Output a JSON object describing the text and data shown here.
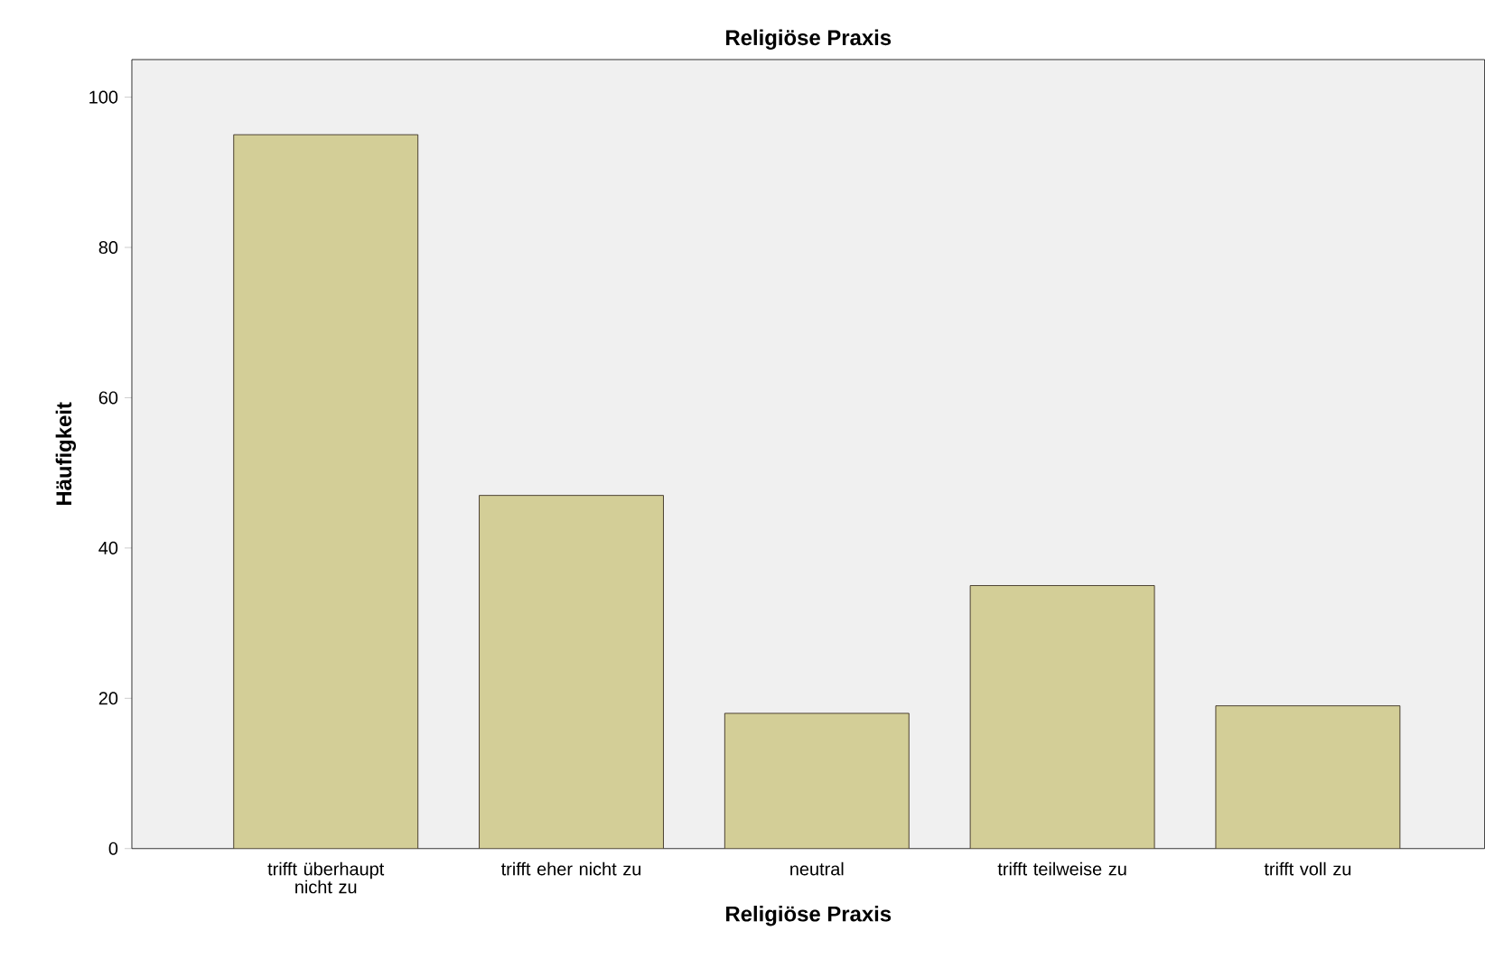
{
  "chart_data": {
    "type": "bar",
    "title": "Religiöse Praxis",
    "xlabel": "Religiöse Praxis",
    "ylabel": "Häufigkeit",
    "categories": [
      "trifft überhaupt nicht zu",
      "trifft eher nicht zu",
      "neutral",
      "trifft teilweise zu",
      "trifft voll zu"
    ],
    "values": [
      95,
      47,
      18,
      35,
      19
    ],
    "color": "#d3ce97",
    "ylim": [
      0,
      105
    ],
    "yticks": [
      0,
      20,
      40,
      60,
      80,
      100
    ],
    "grid": false
  }
}
